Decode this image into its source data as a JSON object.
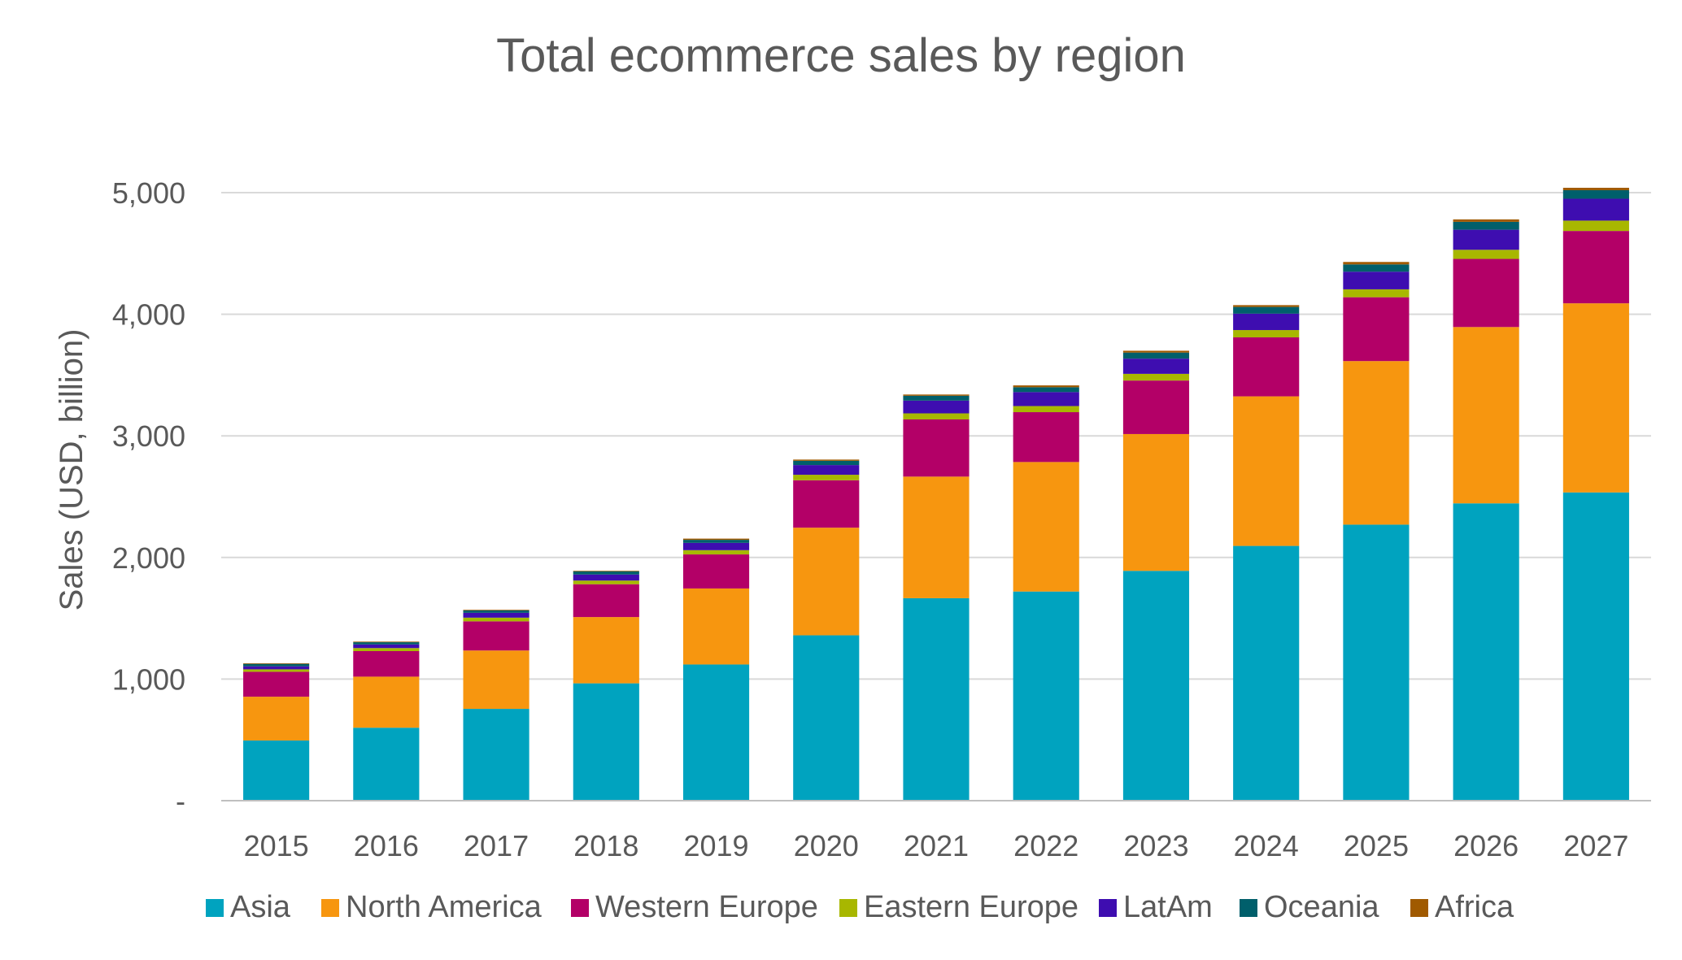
{
  "chart_data": {
    "type": "bar",
    "stacked": true,
    "title": "Total ecommerce sales by region",
    "xlabel": "",
    "ylabel": "Sales (USD, billion)",
    "ylim": [
      0,
      5000
    ],
    "yticks": [
      0,
      1000,
      2000,
      3000,
      4000,
      5000
    ],
    "ytick_labels": [
      "-",
      "1,000",
      "2,000",
      "3,000",
      "4,000",
      "5,000"
    ],
    "grid": true,
    "legend_position": "bottom",
    "categories": [
      "2015",
      "2016",
      "2017",
      "2018",
      "2019",
      "2020",
      "2021",
      "2022",
      "2023",
      "2024",
      "2025",
      "2026",
      "2027"
    ],
    "series": [
      {
        "name": "Asia",
        "color": "#00A3BF",
        "values": [
          495,
          600,
          755,
          965,
          1120,
          1360,
          1665,
          1720,
          1890,
          2095,
          2270,
          2445,
          2535
        ]
      },
      {
        "name": "North America",
        "color": "#F7960F",
        "values": [
          360,
          420,
          480,
          545,
          625,
          885,
          1000,
          1065,
          1125,
          1230,
          1345,
          1450,
          1555
        ]
      },
      {
        "name": "Western Europe",
        "color": "#B30067",
        "values": [
          205,
          210,
          240,
          270,
          280,
          390,
          470,
          410,
          440,
          485,
          525,
          560,
          595
        ]
      },
      {
        "name": "Eastern Europe",
        "color": "#A8B700",
        "values": [
          20,
          25,
          30,
          30,
          35,
          45,
          50,
          50,
          55,
          60,
          65,
          75,
          85
        ]
      },
      {
        "name": "LatAm",
        "color": "#3E0DB0",
        "values": [
          25,
          30,
          40,
          50,
          60,
          80,
          105,
          115,
          125,
          135,
          145,
          165,
          180
        ]
      },
      {
        "name": "Oceania",
        "color": "#005F6B",
        "values": [
          20,
          18,
          20,
          25,
          25,
          35,
          40,
          40,
          50,
          55,
          60,
          65,
          70
        ]
      },
      {
        "name": "Africa",
        "color": "#A05A00",
        "values": [
          5,
          5,
          5,
          5,
          10,
          10,
          10,
          15,
          15,
          15,
          20,
          20,
          20
        ]
      }
    ]
  }
}
